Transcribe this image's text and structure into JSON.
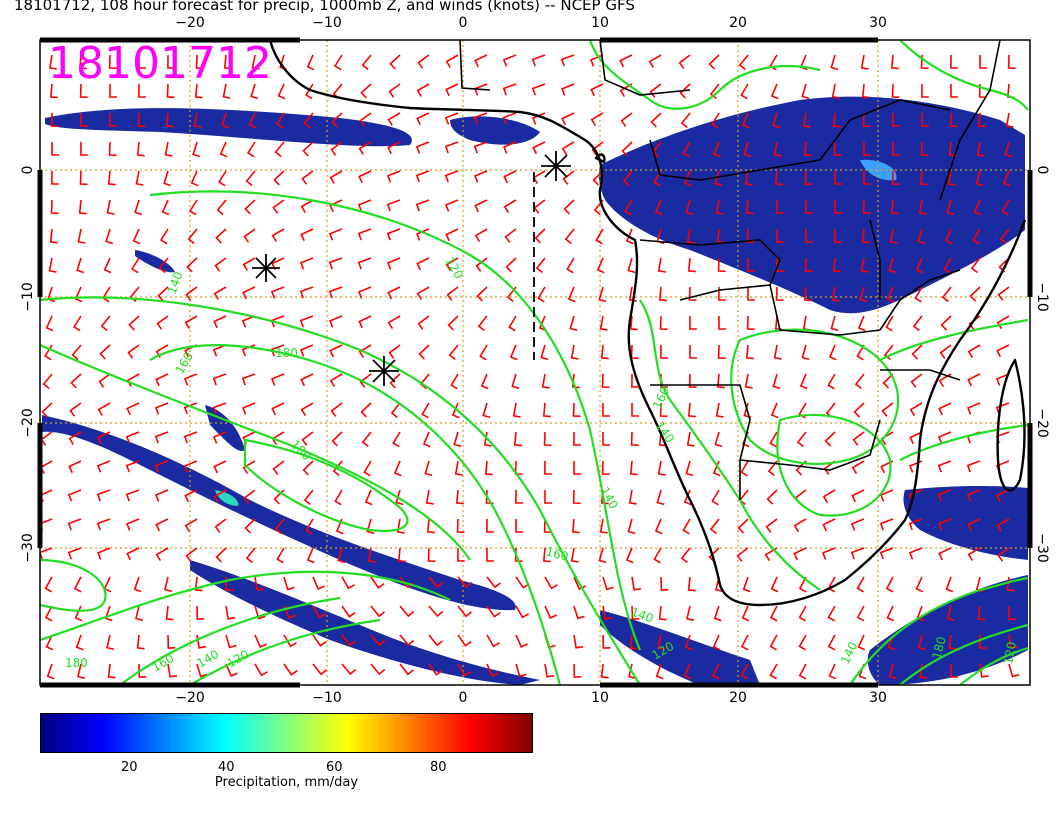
{
  "title": "18101712, 108 hour forecast for precip, 1000mb Z, and winds (knots) -- NCEP GFS",
  "stamp": "18101712",
  "axes": {
    "lon_ticks": [
      {
        "value": -20,
        "label": "−20"
      },
      {
        "value": -10,
        "label": "−10"
      },
      {
        "value": 0,
        "label": "0"
      },
      {
        "value": 10,
        "label": "10"
      },
      {
        "value": 20,
        "label": "20"
      },
      {
        "value": 30,
        "label": "30"
      }
    ],
    "lat_ticks": [
      {
        "value": 0,
        "label": "0"
      },
      {
        "value": -10,
        "label": "−10"
      },
      {
        "value": -20,
        "label": "−20"
      },
      {
        "value": -30,
        "label": "−30"
      }
    ],
    "lon_range": [
      -30,
      40
    ],
    "lat_range": [
      -40,
      10
    ]
  },
  "contour_labels": {
    "v120": "120",
    "v140": "140",
    "v160": "160",
    "v180": "180"
  },
  "colorbar": {
    "ticks": [
      {
        "value": 20,
        "label": "20"
      },
      {
        "value": 40,
        "label": "40"
      },
      {
        "value": 60,
        "label": "60"
      },
      {
        "value": 80,
        "label": "80"
      }
    ],
    "label": "Precipitation, mm/day",
    "range": [
      0,
      100
    ],
    "colors": [
      "#000080",
      "#0000ff",
      "#0080ff",
      "#00ffff",
      "#80ff80",
      "#ffff00",
      "#ff8000",
      "#ff0000",
      "#800000"
    ]
  },
  "colors": {
    "wind_barbs": "#ff0000",
    "contours": "#22dd22",
    "coastline": "#000000",
    "grid": "#d4a020",
    "precip_dark": "#1a2aa0"
  }
}
